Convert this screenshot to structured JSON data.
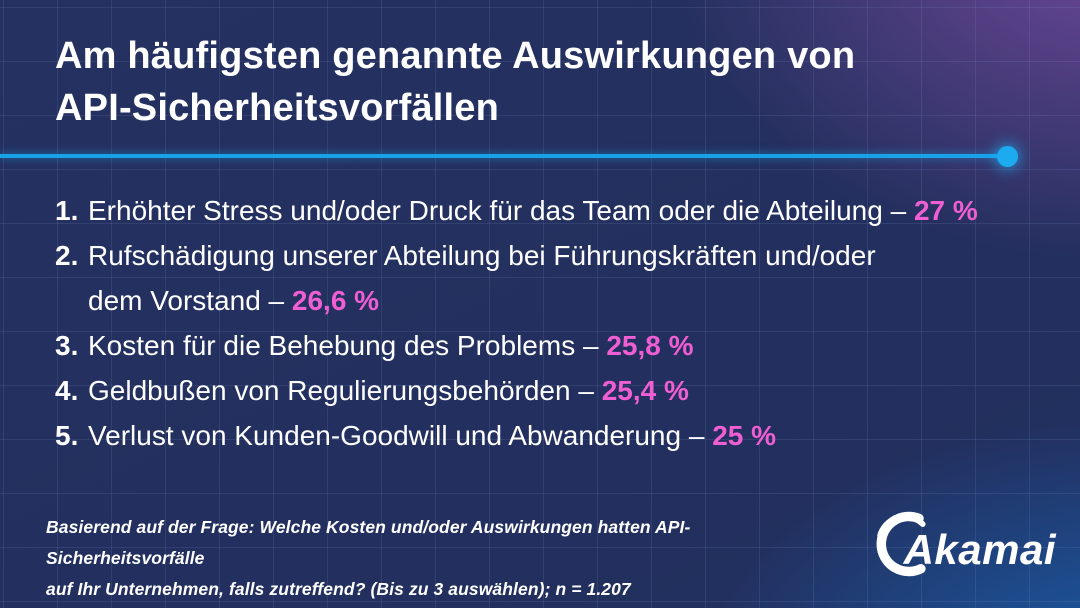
{
  "page": {
    "title_line1": "Am häufigsten genannte Auswirkungen von",
    "title_line2": "API-Sicherheitsvorfällen"
  },
  "list": {
    "items": [
      {
        "num": "1.",
        "text": "Erhöhter Stress und/oder Druck für das Team oder die Abteilung – ",
        "pct": "27 %"
      },
      {
        "num": "2.",
        "text": "Rufschädigung unserer Abteilung bei Führungskräften und/oder\ndem Vorstand – ",
        "pct": "26,6 %"
      },
      {
        "num": "3.",
        "text": "Kosten für die Behebung des Problems – ",
        "pct": "25,8 %"
      },
      {
        "num": "4.",
        "text": "Geldbußen von Regulierungsbehörden – ",
        "pct": "25,4 %"
      },
      {
        "num": "5.",
        "text": "Verlust von Kunden-Goodwill und Abwanderung – ",
        "pct": "25 %"
      }
    ]
  },
  "footer": {
    "line1": "Basierend auf der Frage: Welche Kosten und/oder Auswirkungen hatten API-Sicherheitsvorfälle",
    "line2": "auf Ihr Unternehmen, falls zutreffend? (Bis zu 3 auswählen); n = 1.207"
  },
  "brand": {
    "logo_text": "Akamai"
  },
  "colors": {
    "accent_pink": "#ef5ed2",
    "line_blue": "#18a2e9",
    "dot_blue": "#1caaf0",
    "bg_navy": "#232f5e",
    "bg_purple": "#4a3a73",
    "bg_blue_corner": "#15497f",
    "text_white": "#ffffff"
  },
  "chart_data": {
    "type": "table",
    "title": "Am häufigsten genannte Auswirkungen von API-Sicherheitsvorfällen",
    "categories": [
      "Erhöhter Stress und/oder Druck für das Team oder die Abteilung",
      "Rufschädigung unserer Abteilung bei Führungskräften und/oder dem Vorstand",
      "Kosten für die Behebung des Problems",
      "Geldbußen von Regulierungsbehörden",
      "Verlust von Kunden-Goodwill und Abwanderung"
    ],
    "values": [
      27,
      26.6,
      25.8,
      25.4,
      25
    ],
    "value_labels": [
      "27 %",
      "26,6 %",
      "25,8 %",
      "25,4 %",
      "25 %"
    ],
    "unit": "%",
    "note": "Basierend auf der Frage: Welche Kosten und/oder Auswirkungen hatten API-Sicherheitsvorfälle auf Ihr Unternehmen, falls zutreffend? (Bis zu 3 auswählen); n = 1.207",
    "source_brand": "Akamai"
  }
}
